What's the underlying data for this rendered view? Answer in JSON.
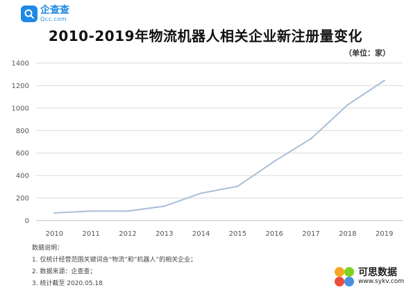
{
  "logo": {
    "name": "企查查",
    "sub": "Qcc.com"
  },
  "title": "2010-2019年物流机器人相关企业新注册量变化",
  "unit_label": "（单位：家）",
  "colors": {
    "line": "#a8bed6",
    "grid": "#d9d9d9",
    "axis": "#bfbfbf",
    "logo": "#1e88e5"
  },
  "chart_data": {
    "type": "line",
    "categories": [
      "2010",
      "2011",
      "2012",
      "2013",
      "2014",
      "2015",
      "2016",
      "2017",
      "2018",
      "2019"
    ],
    "series": [
      {
        "values": [
          68,
          84,
          84,
          128,
          243,
          305,
          527,
          728,
          1029,
          1245
        ]
      }
    ],
    "yticks": [
      0,
      200,
      400,
      600,
      800,
      1000,
      1200,
      1400
    ],
    "ylim": [
      0,
      1400
    ],
    "grid": true,
    "legend": "none"
  },
  "notes": {
    "heading": "数据说明：",
    "items": [
      "1. 仅统计经营范围关键词含“物流”和“机器人”的相关企业；",
      "2. 数据来源：企查查；",
      "3. 统计截至 2020.05.18"
    ]
  },
  "watermark": {
    "cn": "可思数据",
    "url": "www.sykv.com"
  }
}
